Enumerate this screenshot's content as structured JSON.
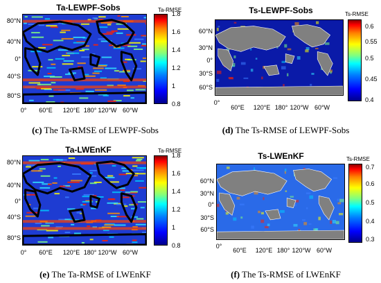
{
  "panels": [
    {
      "key": "c",
      "title": "Ta-LEWPF-Sobs",
      "cb_title": "Ta-RMSE",
      "cb_ticks": [
        "1.8",
        "1.6",
        "1.4",
        "1.2",
        "1",
        "0.8"
      ],
      "y_labels": [
        "80°N",
        "40°N",
        "0°",
        "40°S",
        "80°S"
      ],
      "x_labels": [
        "0°",
        "60°E",
        "120°E",
        "180°",
        "120°W",
        "60°W"
      ],
      "caption_letter": "(c)",
      "caption_text": " The Ta-RMSE of LEWPF-Sobs",
      "colors": {
        "base": "#1e3cd2",
        "land": "#000000"
      }
    },
    {
      "key": "d",
      "title": "Ts-LEWPF-Sobs",
      "cb_title": "Ts-RMSE",
      "cb_ticks": [
        "0.6",
        "0.55",
        "0.5",
        "0.45",
        "0.4"
      ],
      "y_labels": [
        "60°N",
        "30°N",
        "0°",
        "30°S",
        "60°S"
      ],
      "x_labels": [
        "0°",
        "60°E",
        "120°E",
        "180°",
        "120°W",
        "60°W"
      ],
      "caption_letter": "(d)",
      "caption_text": " The Ts-RMSE of LEWPF-Sobs",
      "colors": {
        "base": "#0a1aa8",
        "land": "#808080"
      }
    },
    {
      "key": "e",
      "title": "Ta-LWEnKF",
      "cb_title": "Ta-RMSE",
      "cb_ticks": [
        "1.8",
        "1.6",
        "1.4",
        "1.2",
        "1",
        "0.8"
      ],
      "y_labels": [
        "80°N",
        "40°N",
        "0°",
        "40°S",
        "80°S"
      ],
      "x_labels": [
        "0°",
        "60°E",
        "120°E",
        "180°",
        "120°W",
        "60°W"
      ],
      "caption_letter": "(e)",
      "caption_text": " The Ta-RMSE of LWEnKF",
      "colors": {
        "base": "#1e3cd2",
        "land": "#000000"
      }
    },
    {
      "key": "f",
      "title": "Ts-LWEnKF",
      "cb_title": "Ts-RMSE",
      "cb_ticks": [
        "0.7",
        "0.6",
        "0.5",
        "0.4",
        "0.3"
      ],
      "y_labels": [
        "60°N",
        "30°N",
        "0°",
        "30°S",
        "60°S"
      ],
      "x_labels": [
        "0°",
        "60°E",
        "120°E",
        "180°",
        "120°W",
        "60°W"
      ],
      "caption_letter": "(f)",
      "caption_text": " The Ts-RMSE of LWEnKF",
      "colors": {
        "base": "#2a6ae8",
        "land": "#808080"
      }
    }
  ]
}
